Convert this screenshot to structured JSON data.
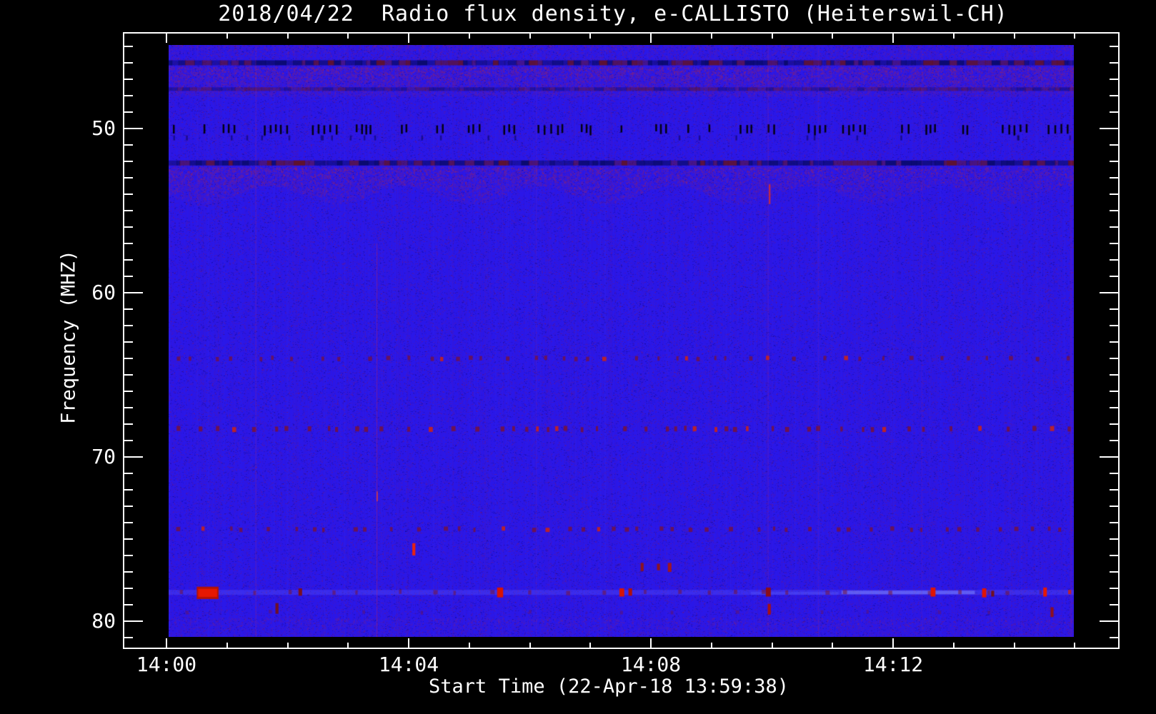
{
  "chart_data": {
    "type": "heatmap",
    "title": "2018/04/22  Radio flux density, e-CALLISTO (Heiterswil-CH)",
    "xlabel": "Start Time (22-Apr-18 13:59:38)",
    "ylabel": "Frequency (MHZ)",
    "x_axis": {
      "unit": "minutes after 14:00",
      "major": [
        {
          "t": 0,
          "label": "14:00"
        },
        {
          "t": 4,
          "label": "14:04"
        },
        {
          "t": 8,
          "label": "14:08"
        },
        {
          "t": 12,
          "label": "14:12"
        }
      ],
      "minor_from": 0,
      "minor_to": 15,
      "minor_step": 1,
      "image_span_min": [
        0.03,
        14.98
      ]
    },
    "y_axis": {
      "unit": "MHz",
      "major": [
        {
          "f": 50,
          "label": "50"
        },
        {
          "f": 60,
          "label": "60"
        },
        {
          "f": 70,
          "label": "70"
        },
        {
          "f": 80,
          "label": "80"
        }
      ],
      "minor_from": 45,
      "minor_to": 81,
      "minor_step": 1,
      "image_span_mhz": [
        44.9,
        81.1
      ]
    },
    "colors": {
      "background": "#000000",
      "frame": "#ffffff",
      "text": "#ffffff",
      "base_blue": "#2a17e8",
      "navy": "#0a0a6e",
      "dark_red": "#5f1230",
      "purple_speck": "#962369",
      "black_dash": "#000000",
      "bright_red": "#e01600"
    },
    "noise": {
      "column_striation_prob": 0.32,
      "column_purple_alpha_max": 0.1,
      "pixel_specks": 150000,
      "speck_red_ratio": 0.6
    },
    "mottle_zones": [
      {
        "f0": 44.9,
        "f1": 45.8,
        "count": 3500,
        "alpha": 0.16,
        "wave": 0
      },
      {
        "f0": 46.25,
        "f1": 48.05,
        "count": 12000,
        "alpha": 0.3,
        "wave": 0
      },
      {
        "f0": 52.35,
        "f1": 54.6,
        "count": 14000,
        "alpha": 0.3,
        "wave": 1
      },
      {
        "f0": 79.8,
        "f1": 81.05,
        "count": 3000,
        "alpha": 0.16,
        "wave": 0
      }
    ],
    "dashed_bands": [
      {
        "f": 46.0,
        "h": 7,
        "strength": 1.0
      },
      {
        "f": 47.6,
        "h": 5,
        "strength": 0.55
      },
      {
        "f": 52.1,
        "h": 7,
        "strength": 1.0
      }
    ],
    "black_dash_row": {
      "f": 50.05,
      "dash_h": 13,
      "dash_w": 2.5,
      "cluster_min": 1,
      "cluster_max": 5,
      "gap_min": 14,
      "gap_max": 48
    },
    "echo_dash_row": {
      "f": 50.55,
      "count": 26,
      "alpha": 0.45
    },
    "rfi_rows": [
      {
        "f": 64.0,
        "h": 6,
        "step_min": 12,
        "step_max": 46,
        "bright_prob": 0.1,
        "dark_alpha": 0.75
      },
      {
        "f": 68.3,
        "h": 7,
        "step_min": 10,
        "step_max": 40,
        "bright_prob": 0.18,
        "dark_alpha": 0.85
      },
      {
        "f": 74.4,
        "h": 6,
        "step_min": 12,
        "step_max": 44,
        "bright_prob": 0.12,
        "dark_alpha": 0.8
      },
      {
        "f": 78.25,
        "h": 6,
        "step_min": 22,
        "step_max": 66,
        "bright_prob": 0.04,
        "dark_alpha": 0.55
      },
      {
        "f": 79.45,
        "h": 5,
        "step_min": 60,
        "step_max": 160,
        "bright_prob": 0.0,
        "dark_alpha": 0.4
      }
    ],
    "light_row": {
      "f": 78.25,
      "h": 7,
      "alpha": 0.28
    },
    "light_streaks": [
      {
        "t0": 11.15,
        "t1": 13.35,
        "f": 78.25,
        "h": 5,
        "color": "rgba(130,140,255,0.50)"
      },
      {
        "t0": 9.65,
        "t1": 11.1,
        "f": 78.3,
        "h": 4,
        "color": "rgba(90,95,255,0.30)"
      }
    ],
    "events": [
      {
        "t0": 0.5,
        "t1": 0.86,
        "f0": 77.9,
        "f1": 78.65,
        "color": "#b31205",
        "core": "#e51802"
      },
      {
        "t0": 1.8,
        "t1": 1.85,
        "f0": 78.9,
        "f1": 79.55,
        "color": "#701024"
      },
      {
        "t0": 2.18,
        "t1": 2.24,
        "f0": 78.0,
        "f1": 78.45,
        "color": "#7a1020"
      },
      {
        "t0": 4.06,
        "t1": 4.11,
        "f0": 75.25,
        "f1": 76.0,
        "color": "#e82410"
      },
      {
        "t0": 5.46,
        "t1": 5.56,
        "f0": 77.95,
        "f1": 78.55,
        "color": "#d81404"
      },
      {
        "t0": 7.48,
        "t1": 7.56,
        "f0": 78.0,
        "f1": 78.5,
        "color": "#d81404"
      },
      {
        "t0": 7.63,
        "t1": 7.69,
        "f0": 78.0,
        "f1": 78.45,
        "color": "#b01008"
      },
      {
        "t0": 7.83,
        "t1": 7.88,
        "f0": 76.45,
        "f1": 76.95,
        "color": "#8c1420"
      },
      {
        "t0": 8.1,
        "t1": 8.15,
        "f0": 76.5,
        "f1": 76.9,
        "color": "#8c1420"
      },
      {
        "t0": 8.28,
        "t1": 8.34,
        "f0": 76.45,
        "f1": 77.0,
        "color": "#a01620"
      },
      {
        "t0": 9.9,
        "t1": 9.98,
        "f0": 77.95,
        "f1": 78.5,
        "color": "#8c0e18"
      },
      {
        "t0": 9.93,
        "t1": 9.98,
        "f0": 78.95,
        "f1": 79.6,
        "color": "#a51212"
      },
      {
        "t0": 12.62,
        "t1": 12.7,
        "f0": 77.95,
        "f1": 78.5,
        "color": "#e01404"
      },
      {
        "t0": 13.47,
        "t1": 13.54,
        "f0": 78.0,
        "f1": 78.55,
        "color": "#e01404"
      },
      {
        "t0": 13.62,
        "t1": 13.67,
        "f0": 78.15,
        "f1": 78.5,
        "color": "#70101f"
      },
      {
        "t0": 14.48,
        "t1": 14.54,
        "f0": 77.95,
        "f1": 78.5,
        "color": "#e61804"
      },
      {
        "t0": 14.6,
        "t1": 14.65,
        "f0": 79.15,
        "f1": 79.75,
        "color": "#8c1020"
      }
    ],
    "vlines": [
      {
        "t": 1.47,
        "f0": 45.0,
        "f1": 81.0,
        "w": 1,
        "color": "rgba(255,60,60,0.22)"
      },
      {
        "t": 3.47,
        "f0": 57.0,
        "f1": 81.0,
        "w": 1,
        "color": "rgba(255,50,50,0.30)"
      },
      {
        "t": 3.47,
        "f0": 72.1,
        "f1": 72.7,
        "w": 1.6,
        "color": "rgba(255,70,30,0.80)"
      },
      {
        "t": 6.1,
        "f0": 45.0,
        "f1": 81.0,
        "w": 1,
        "color": "rgba(180,40,140,0.12)"
      },
      {
        "t": 9.93,
        "f0": 45.0,
        "f1": 81.0,
        "w": 1,
        "color": "rgba(255,60,60,0.18)"
      },
      {
        "t": 9.95,
        "f0": 53.4,
        "f1": 54.6,
        "w": 2,
        "color": "rgba(240,50,20,0.85)"
      },
      {
        "t": 10.76,
        "f0": 45.0,
        "f1": 81.0,
        "w": 1,
        "color": "rgba(180,40,140,0.15)"
      },
      {
        "t": 12.47,
        "f0": 45.0,
        "f1": 81.0,
        "w": 1,
        "color": "rgba(180,40,140,0.15)"
      },
      {
        "t": 14.93,
        "f0": 45.0,
        "f1": 81.0,
        "w": 2,
        "color": "rgba(160,30,130,0.25)"
      }
    ]
  }
}
